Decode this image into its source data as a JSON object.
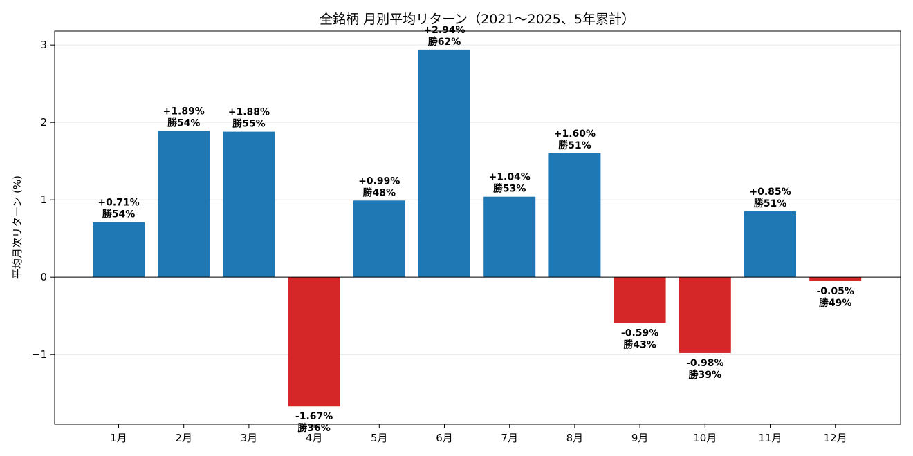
{
  "chart_data": {
    "type": "bar",
    "title": "全銘柄 月別平均リターン（2021〜2025、5年累計）",
    "xlabel": "",
    "ylabel": "平均月次リターン (%)",
    "categories": [
      "1月",
      "2月",
      "3月",
      "4月",
      "5月",
      "6月",
      "7月",
      "8月",
      "9月",
      "10月",
      "11月",
      "12月"
    ],
    "values": [
      0.71,
      1.89,
      1.88,
      -1.67,
      0.99,
      2.94,
      1.04,
      1.6,
      -0.59,
      -0.98,
      0.85,
      -0.05
    ],
    "value_labels": [
      "+0.71%",
      "+1.89%",
      "+1.88%",
      "-1.67%",
      "+0.99%",
      "+2.94%",
      "+1.04%",
      "+1.60%",
      "-0.59%",
      "-0.98%",
      "+0.85%",
      "-0.05%"
    ],
    "win_rate_labels": [
      "勝54%",
      "勝54%",
      "勝55%",
      "勝36%",
      "勝48%",
      "勝62%",
      "勝53%",
      "勝51%",
      "勝43%",
      "勝39%",
      "勝51%",
      "勝49%"
    ],
    "yticks": [
      -1,
      0,
      1,
      2,
      3
    ],
    "ytick_labels": [
      "−1",
      "0",
      "1",
      "2",
      "3"
    ],
    "ylim": [
      -1.9,
      3.18
    ],
    "grid": true,
    "zero_line": true,
    "colors": {
      "positive": "#1f77b4",
      "negative": "#d62728",
      "grid": "#e6e6e6",
      "axis": "#000000"
    }
  }
}
